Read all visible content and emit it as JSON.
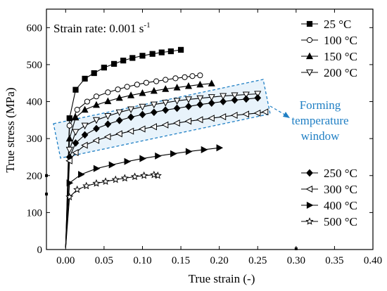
{
  "chart_data": {
    "type": "line",
    "title": "",
    "xlabel": "True strain (-)",
    "ylabel": "True stress (MPa)",
    "xlim": [
      -0.025,
      0.4
    ],
    "ylim": [
      0,
      650
    ],
    "x_ticks": [
      "0.00",
      "0.05",
      "0.10",
      "0.15",
      "0.20",
      "0.25",
      "0.30",
      "0.35",
      "0.40"
    ],
    "x_tick_values": [
      0,
      0.05,
      0.1,
      0.15,
      0.2,
      0.25,
      0.3,
      0.35,
      0.4
    ],
    "y_ticks": [
      "0",
      "100",
      "200",
      "300",
      "400",
      "500",
      "600"
    ],
    "y_tick_values": [
      0,
      100,
      200,
      300,
      400,
      500,
      600
    ],
    "grid": false,
    "annotation_prefix": "Strain rate: 0.001 s",
    "annotation_superscript": "-1",
    "window_label": [
      "Forming",
      "temperature",
      "window"
    ],
    "window_color": "#1f7fc4",
    "window_fill": "#d6e9f7",
    "series": [
      {
        "name": "25 °C",
        "marker": "square",
        "x": [
          0.0,
          0.005,
          0.013,
          0.025,
          0.037,
          0.05,
          0.063,
          0.075,
          0.087,
          0.1,
          0.113,
          0.125,
          0.137,
          0.15
        ],
        "y": [
          5,
          355,
          432,
          462,
          477,
          492,
          502,
          511,
          518,
          524,
          529,
          533,
          536,
          540
        ]
      },
      {
        "name": "100 °C",
        "marker": "circle-open",
        "x": [
          0.0,
          0.005,
          0.015,
          0.028,
          0.04,
          0.055,
          0.068,
          0.08,
          0.093,
          0.105,
          0.118,
          0.13,
          0.143,
          0.155,
          0.165,
          0.175
        ],
        "y": [
          5,
          335,
          378,
          400,
          414,
          425,
          433,
          440,
          446,
          451,
          455,
          459,
          463,
          466,
          469,
          471
        ]
      },
      {
        "name": "150 °C",
        "marker": "triangle-up",
        "x": [
          0.0,
          0.005,
          0.013,
          0.025,
          0.04,
          0.055,
          0.07,
          0.085,
          0.1,
          0.115,
          0.13,
          0.145,
          0.16,
          0.175,
          0.19
        ],
        "y": [
          5,
          300,
          357,
          378,
          391,
          401,
          410,
          417,
          423,
          429,
          434,
          438,
          442,
          446,
          449
        ]
      },
      {
        "name": "200 °C",
        "marker": "triangle-down-open",
        "x": [
          0.0,
          0.005,
          0.013,
          0.025,
          0.04,
          0.055,
          0.07,
          0.085,
          0.1,
          0.115,
          0.13,
          0.145,
          0.16,
          0.175,
          0.19,
          0.205,
          0.22,
          0.235,
          0.25
        ],
        "y": [
          5,
          270,
          318,
          335,
          350,
          361,
          371,
          379,
          386,
          392,
          397,
          402,
          406,
          409,
          412,
          415,
          417,
          419,
          421
        ]
      },
      {
        "name": "250 °C",
        "marker": "diamond",
        "x": [
          0.0,
          0.005,
          0.013,
          0.025,
          0.04,
          0.055,
          0.07,
          0.085,
          0.1,
          0.115,
          0.13,
          0.145,
          0.16,
          0.175,
          0.19,
          0.205,
          0.22,
          0.235,
          0.25
        ],
        "y": [
          5,
          250,
          288,
          310,
          327,
          339,
          349,
          358,
          365,
          371,
          377,
          382,
          387,
          392,
          396,
          400,
          404,
          407,
          410
        ]
      },
      {
        "name": "300 °C",
        "marker": "triangle-left-open",
        "x": [
          0.0,
          0.005,
          0.013,
          0.025,
          0.04,
          0.055,
          0.07,
          0.085,
          0.1,
          0.115,
          0.13,
          0.145,
          0.16,
          0.175,
          0.19,
          0.205,
          0.22,
          0.235,
          0.25,
          0.26
        ],
        "y": [
          5,
          240,
          262,
          282,
          295,
          305,
          313,
          320,
          326,
          332,
          337,
          342,
          347,
          351,
          355,
          359,
          363,
          366,
          369,
          372
        ]
      },
      {
        "name": "400 °C",
        "marker": "triangle-right",
        "x": [
          0.0,
          0.005,
          0.02,
          0.04,
          0.06,
          0.08,
          0.1,
          0.12,
          0.14,
          0.16,
          0.18,
          0.2
        ],
        "y": [
          5,
          180,
          203,
          219,
          229,
          238,
          246,
          253,
          259,
          265,
          270,
          275
        ]
      },
      {
        "name": "500 °C",
        "marker": "star-open",
        "x": [
          0.0,
          0.005,
          0.015,
          0.027,
          0.04,
          0.052,
          0.065,
          0.077,
          0.09,
          0.102,
          0.115,
          0.12
        ],
        "y": [
          5,
          142,
          162,
          172,
          179,
          184,
          189,
          193,
          197,
          200,
          202,
          200
        ]
      }
    ],
    "stray_marks": [
      {
        "x": -0.025,
        "y": 150
      },
      {
        "x": -0.025,
        "y": 200
      },
      {
        "x": 0.3,
        "y": 2
      }
    ],
    "legend_groups": [
      {
        "placement": "top-right",
        "series": [
          0,
          1,
          2,
          3
        ]
      },
      {
        "placement": "bottom-right",
        "series": [
          4,
          5,
          6,
          7
        ]
      }
    ]
  }
}
